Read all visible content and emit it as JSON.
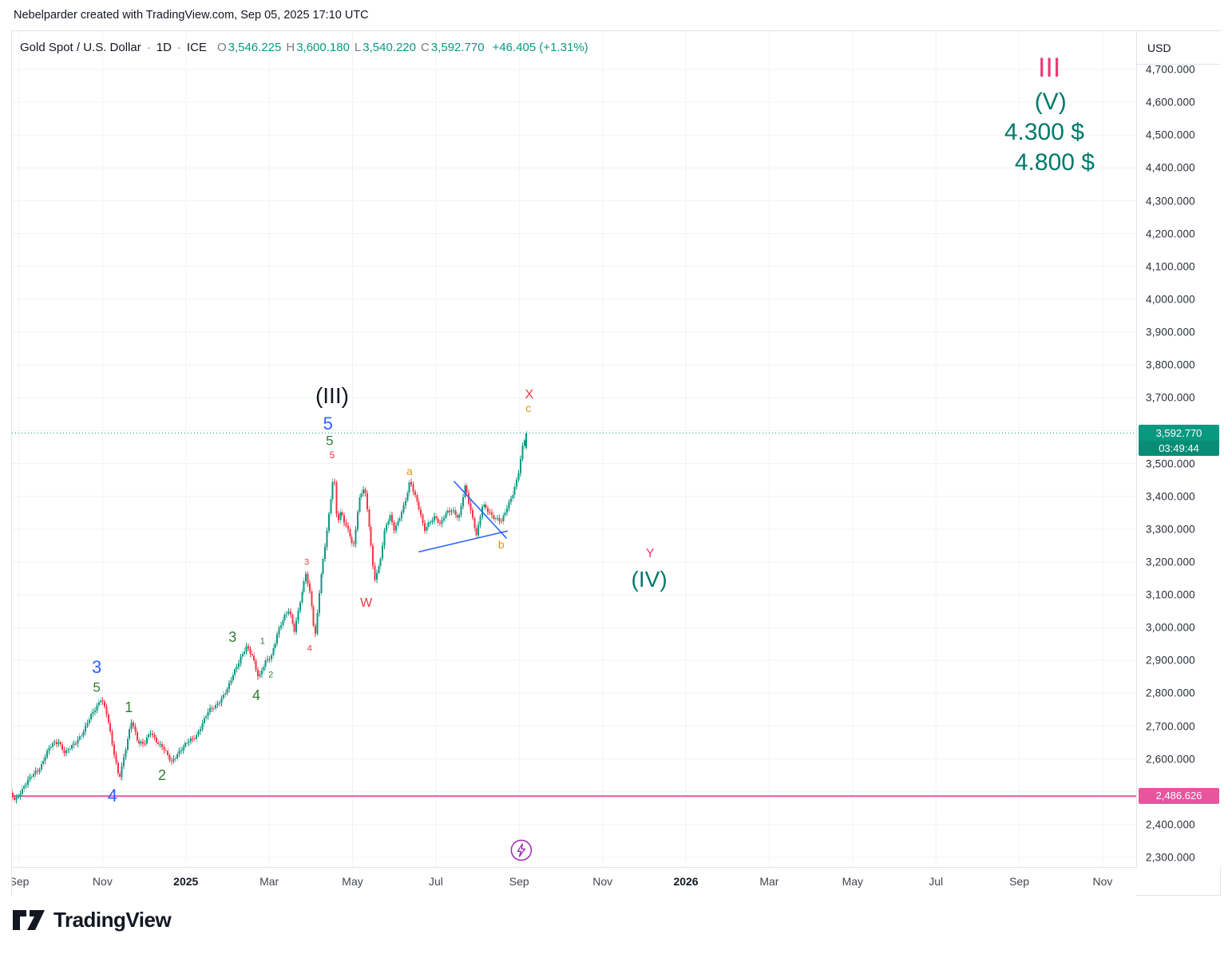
{
  "attribution": "Nebelparder created with TradingView.com, Sep 05, 2025 17:10 UTC",
  "symbol_bar": {
    "name": "Gold Spot / U.S. Dollar",
    "sep1": "·",
    "interval": "1D",
    "sep2": "·",
    "exchange": "ICE",
    "ohlc": [
      {
        "label": "O",
        "value": "3,546.225"
      },
      {
        "label": "H",
        "value": "3,600.180"
      },
      {
        "label": "L",
        "value": "3,540.220"
      },
      {
        "label": "C",
        "value": "3,592.770"
      }
    ],
    "change": "+46.405 (+1.31%)"
  },
  "price_axis": {
    "currency": "USD",
    "last_price_label": "3,592.770",
    "countdown": "03:49:44",
    "level_label": "2,486.626",
    "ticks": [
      {
        "p": 4700,
        "label": "4,700.000"
      },
      {
        "p": 4600,
        "label": "4,600.000"
      },
      {
        "p": 4500,
        "label": "4,500.000"
      },
      {
        "p": 4400,
        "label": "4,400.000"
      },
      {
        "p": 4300,
        "label": "4,300.000"
      },
      {
        "p": 4200,
        "label": "4,200.000"
      },
      {
        "p": 4100,
        "label": "4,100.000"
      },
      {
        "p": 4000,
        "label": "4,000.000"
      },
      {
        "p": 3900,
        "label": "3,900.000"
      },
      {
        "p": 3800,
        "label": "3,800.000"
      },
      {
        "p": 3700,
        "label": "3,700.000"
      },
      {
        "p": 3600,
        "label": "3,600.000"
      },
      {
        "p": 3500,
        "label": "3,500.000"
      },
      {
        "p": 3400,
        "label": "3,400.000"
      },
      {
        "p": 3300,
        "label": "3,300.000"
      },
      {
        "p": 3200,
        "label": "3,200.000"
      },
      {
        "p": 3100,
        "label": "3,100.000"
      },
      {
        "p": 3000,
        "label": "3,000.000"
      },
      {
        "p": 2900,
        "label": "2,900.000"
      },
      {
        "p": 2800,
        "label": "2,800.000"
      },
      {
        "p": 2700,
        "label": "2,700.000"
      },
      {
        "p": 2600,
        "label": "2,600.000"
      },
      {
        "p": 2500,
        "label": "2,500.000"
      },
      {
        "p": 2400,
        "label": "2,400.000"
      },
      {
        "p": 2300,
        "label": "2,300.000"
      }
    ]
  },
  "time_axis": {
    "labels": [
      {
        "text": "Sep",
        "t": 0,
        "bold": false
      },
      {
        "text": "Nov",
        "t": 2,
        "bold": false
      },
      {
        "text": "2025",
        "t": 4,
        "bold": true
      },
      {
        "text": "Mar",
        "t": 6,
        "bold": false
      },
      {
        "text": "May",
        "t": 8,
        "bold": false
      },
      {
        "text": "Jul",
        "t": 10,
        "bold": false
      },
      {
        "text": "Sep",
        "t": 12,
        "bold": false
      },
      {
        "text": "Nov",
        "t": 14,
        "bold": false
      },
      {
        "text": "2026",
        "t": 16,
        "bold": true
      },
      {
        "text": "Mar",
        "t": 18,
        "bold": false
      },
      {
        "text": "May",
        "t": 20,
        "bold": false
      },
      {
        "text": "Jul",
        "t": 22,
        "bold": false
      },
      {
        "text": "Sep",
        "t": 24,
        "bold": false
      },
      {
        "text": "Nov",
        "t": 26,
        "bold": false
      }
    ]
  },
  "annotations": [
    {
      "text": "III",
      "t": 24.72,
      "p": 4705,
      "color": "pink",
      "size": 34
    },
    {
      "text": "(V)",
      "t": 24.75,
      "p": 4600,
      "color": "teal",
      "size": 30
    },
    {
      "text": "4.300 $",
      "t": 24.6,
      "p": 4508,
      "color": "teal",
      "size": 30
    },
    {
      "text": "4.800 $",
      "t": 24.85,
      "p": 4415,
      "color": "teal",
      "size": 30
    },
    {
      "text": "(III)",
      "t": 7.51,
      "p": 3706,
      "color": "dark",
      "size": 28
    },
    {
      "text": "5",
      "t": 7.41,
      "p": 3620,
      "color": "blue",
      "size": 22
    },
    {
      "text": "5",
      "t": 7.45,
      "p": 3569,
      "color": "green",
      "size": 17
    },
    {
      "text": "5",
      "t": 7.51,
      "p": 3526,
      "color": "red",
      "size": 12
    },
    {
      "text": "X",
      "t": 12.24,
      "p": 3708,
      "color": "red",
      "size": 16
    },
    {
      "text": "c",
      "t": 12.22,
      "p": 3669,
      "color": "orange",
      "size": 14
    },
    {
      "text": "a",
      "t": 9.37,
      "p": 3477,
      "color": "orange",
      "size": 14
    },
    {
      "text": "b",
      "t": 11.57,
      "p": 3253,
      "color": "orange",
      "size": 14
    },
    {
      "text": "W",
      "t": 8.33,
      "p": 3073,
      "color": "red",
      "size": 16
    },
    {
      "text": "Y",
      "t": 15.14,
      "p": 3224,
      "color": "pink",
      "size": 16
    },
    {
      "text": "(IV)",
      "t": 15.12,
      "p": 3146,
      "color": "teal",
      "size": 28
    },
    {
      "text": "3",
      "t": 5.12,
      "p": 2971,
      "color": "green",
      "size": 18
    },
    {
      "text": "1",
      "t": 5.84,
      "p": 2957,
      "color": "green",
      "size": 11
    },
    {
      "text": "2",
      "t": 6.04,
      "p": 2854,
      "color": "green",
      "size": 11
    },
    {
      "text": "4",
      "t": 5.69,
      "p": 2794,
      "color": "green",
      "size": 18
    },
    {
      "text": "3",
      "t": 6.9,
      "p": 3197,
      "color": "red",
      "size": 11
    },
    {
      "text": "4",
      "t": 6.97,
      "p": 2935,
      "color": "red",
      "size": 11
    },
    {
      "text": "3",
      "t": 1.86,
      "p": 2879,
      "color": "blue",
      "size": 22
    },
    {
      "text": "5",
      "t": 1.86,
      "p": 2818,
      "color": "green",
      "size": 17
    },
    {
      "text": "1",
      "t": 2.63,
      "p": 2757,
      "color": "green",
      "size": 18
    },
    {
      "text": "2",
      "t": 3.43,
      "p": 2551,
      "color": "green",
      "size": 18
    },
    {
      "text": "4",
      "t": 2.24,
      "p": 2487,
      "color": "blue",
      "size": 22
    }
  ],
  "overlays": {
    "current_price": 3592.77,
    "pink_level": 2486.626,
    "triangle_lines": [
      [
        10.44,
        3445,
        11.69,
        3273
      ],
      [
        9.6,
        3231,
        11.71,
        3294
      ]
    ],
    "event_marker": {
      "t": 12.05,
      "p": 2322
    }
  },
  "chart_data": {
    "type": "candlestick",
    "title": "Gold Spot / U.S. Dollar, 1D, ICE",
    "x_unit": "months since Sep 2024",
    "x_range": [
      -0.25,
      26.3
    ],
    "y_range": [
      2300,
      4700
    ],
    "grid": true,
    "last_candle": {
      "o": 3546.225,
      "h": 3600.18,
      "l": 3540.22,
      "c": 3592.77
    },
    "price_path": [
      [
        -0.25,
        2497
      ],
      [
        -0.1,
        2475
      ],
      [
        0.05,
        2505
      ],
      [
        0.2,
        2530
      ],
      [
        0.35,
        2555
      ],
      [
        0.5,
        2575
      ],
      [
        0.65,
        2615
      ],
      [
        0.8,
        2645
      ],
      [
        0.95,
        2655
      ],
      [
        1.1,
        2615
      ],
      [
        1.25,
        2635
      ],
      [
        1.4,
        2660
      ],
      [
        1.55,
        2685
      ],
      [
        1.7,
        2725
      ],
      [
        1.85,
        2760
      ],
      [
        1.97,
        2788
      ],
      [
        2.1,
        2735
      ],
      [
        2.25,
        2635
      ],
      [
        2.4,
        2542
      ],
      [
        2.55,
        2625
      ],
      [
        2.7,
        2716
      ],
      [
        2.85,
        2655
      ],
      [
        3.0,
        2645
      ],
      [
        3.15,
        2680
      ],
      [
        3.3,
        2655
      ],
      [
        3.45,
        2635
      ],
      [
        3.65,
        2588
      ],
      [
        3.8,
        2618
      ],
      [
        3.95,
        2638
      ],
      [
        4.1,
        2655
      ],
      [
        4.25,
        2672
      ],
      [
        4.4,
        2708
      ],
      [
        4.55,
        2745
      ],
      [
        4.7,
        2762
      ],
      [
        4.85,
        2782
      ],
      [
        5.0,
        2810
      ],
      [
        5.15,
        2865
      ],
      [
        5.3,
        2905
      ],
      [
        5.45,
        2938
      ],
      [
        5.6,
        2915
      ],
      [
        5.75,
        2848
      ],
      [
        5.9,
        2892
      ],
      [
        6.05,
        2912
      ],
      [
        6.2,
        2988
      ],
      [
        6.35,
        3028
      ],
      [
        6.48,
        3052
      ],
      [
        6.6,
        2992
      ],
      [
        6.75,
        3085
      ],
      [
        6.88,
        3162
      ],
      [
        7.0,
        3088
      ],
      [
        7.1,
        2968
      ],
      [
        7.22,
        3135
      ],
      [
        7.35,
        3255
      ],
      [
        7.45,
        3360
      ],
      [
        7.55,
        3480
      ],
      [
        7.63,
        3322
      ],
      [
        7.72,
        3352
      ],
      [
        7.82,
        3312
      ],
      [
        7.92,
        3288
      ],
      [
        8.02,
        3242
      ],
      [
        8.15,
        3388
      ],
      [
        8.28,
        3428
      ],
      [
        8.4,
        3308
      ],
      [
        8.52,
        3148
      ],
      [
        8.65,
        3192
      ],
      [
        8.78,
        3298
      ],
      [
        8.9,
        3342
      ],
      [
        9.0,
        3302
      ],
      [
        9.12,
        3332
      ],
      [
        9.25,
        3372
      ],
      [
        9.38,
        3448
      ],
      [
        9.5,
        3405
      ],
      [
        9.62,
        3352
      ],
      [
        9.72,
        3292
      ],
      [
        9.85,
        3322
      ],
      [
        9.98,
        3342
      ],
      [
        10.1,
        3312
      ],
      [
        10.25,
        3348
      ],
      [
        10.4,
        3362
      ],
      [
        10.55,
        3332
      ],
      [
        10.7,
        3428
      ],
      [
        10.85,
        3352
      ],
      [
        10.98,
        3282
      ],
      [
        11.12,
        3372
      ],
      [
        11.28,
        3352
      ],
      [
        11.42,
        3335
      ],
      [
        11.58,
        3322
      ],
      [
        11.72,
        3368
      ],
      [
        11.85,
        3412
      ],
      [
        11.97,
        3462
      ],
      [
        12.08,
        3548
      ],
      [
        12.17,
        3593
      ]
    ]
  },
  "colors": {
    "up": "#089981",
    "down": "#f23645",
    "blue": "#2962ff",
    "pink": "#f23674",
    "pink_line": "#e9549e",
    "teal": "#00796b",
    "green": "#2e7d32",
    "red": "#f23645",
    "orange": "#e8930c",
    "dark": "#131722",
    "purple": "#9c27b0",
    "grid": "#f2f3f7",
    "axis_text": "#2a2e39"
  },
  "footer": {
    "brand": "TradingView"
  }
}
